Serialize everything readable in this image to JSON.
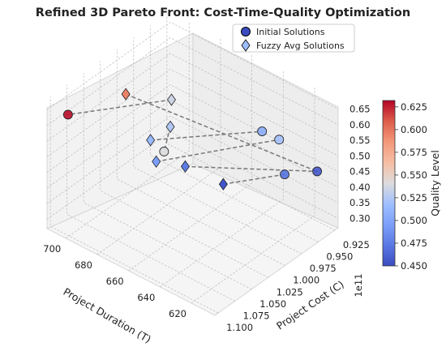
{
  "chart_data": {
    "type": "scatter",
    "projection": "3d",
    "title": "Refined 3D Pareto Front: Cost-Time-Quality Optimization",
    "axes": {
      "x": {
        "label": "Project Cost (C)",
        "range": [
          0.92,
          1.105
        ],
        "ticks": [
          "0.925",
          "0.950",
          "0.975",
          "1.000",
          "1.025",
          "1.050",
          "1.075",
          "1.100"
        ],
        "offset_label": "1e11"
      },
      "y": {
        "label": "Project Duration (T)",
        "range": [
          605,
          712
        ],
        "ticks": [
          "620",
          "640",
          "660",
          "680",
          "700"
        ]
      },
      "z": {
        "label": "",
        "range": [
          0.27,
          0.685
        ],
        "ticks": [
          "0.30",
          "0.35",
          "0.40",
          "0.45",
          "0.50",
          "0.55",
          "0.60",
          "0.65"
        ]
      }
    },
    "grid": true,
    "legend_position": "top-right",
    "series": [
      {
        "name": "Initial Solutions",
        "marker": "circle",
        "points": [
          {
            "cost": 0.935,
            "duration": 612,
            "quality": 0.455
          },
          {
            "cost": 0.965,
            "duration": 620,
            "quality": 0.47
          },
          {
            "cost": 0.945,
            "duration": 632,
            "quality": 0.52
          },
          {
            "cost": 0.94,
            "duration": 645,
            "quality": 0.505
          },
          {
            "cost": 1.04,
            "duration": 665,
            "quality": 0.54
          },
          {
            "cost": 1.09,
            "duration": 705,
            "quality": 0.63
          }
        ]
      },
      {
        "name": "Fuzzy Avg Solutions",
        "marker": "diamond",
        "points": [
          {
            "cost": 1.01,
            "duration": 640,
            "quality": 0.455
          },
          {
            "cost": 1.02,
            "duration": 660,
            "quality": 0.475
          },
          {
            "cost": 1.04,
            "duration": 670,
            "quality": 0.495
          },
          {
            "cost": 1.025,
            "duration": 680,
            "quality": 0.515
          },
          {
            "cost": 1.0,
            "duration": 678,
            "quality": 0.525
          },
          {
            "cost": 0.97,
            "duration": 690,
            "quality": 0.535
          },
          {
            "cost": 1.015,
            "duration": 700,
            "quality": 0.595
          }
        ]
      }
    ],
    "connections": [
      [
        1,
        0
      ],
      [
        1,
        1
      ],
      [
        0,
        2
      ],
      [
        0,
        3
      ],
      [
        0,
        4
      ],
      [
        0,
        5
      ],
      [
        1,
        6
      ]
    ],
    "colorbar": {
      "label": "Quality Level",
      "colormap": "coolwarm",
      "range": [
        0.45,
        0.632
      ],
      "ticks": [
        "0.450",
        "0.475",
        "0.500",
        "0.525",
        "0.550",
        "0.575",
        "0.600",
        "0.625"
      ]
    },
    "colors": {
      "low": "#3b4cc0",
      "mid": "#dddcdc",
      "high": "#b40426",
      "grid": "#b9b9b9",
      "pane": "#f2f2f2"
    }
  }
}
